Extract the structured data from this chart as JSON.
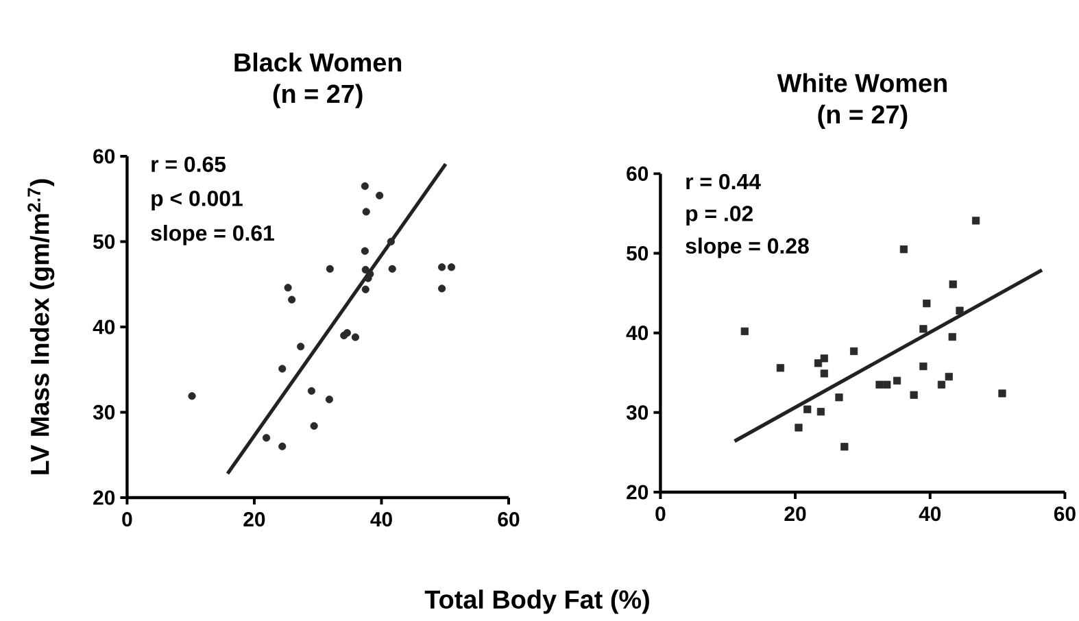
{
  "chart_data": [
    {
      "type": "scatter",
      "title": "Black Women",
      "subtitle": "(n = 27)",
      "ylabel": "LV Mass Index (gm/m$^{2.7}$)",
      "xlabel": "Total Body Fat (%)",
      "annotations": [
        "r = 0.65",
        "p < 0.001",
        "slope = 0.61"
      ],
      "xlim": [
        0,
        60
      ],
      "xticks": [
        0,
        20,
        40,
        60
      ],
      "ylim": [
        20,
        60
      ],
      "yticks": [
        20,
        30,
        40,
        50,
        60
      ],
      "grid": false,
      "series": [
        {
          "marker": "circle",
          "color": "#2a2a2a",
          "x": [
            10.2,
            21.9,
            24.4,
            24.4,
            25.3,
            25.9,
            27.3,
            29.0,
            29.4,
            31.8,
            31.9,
            34.1,
            34.6,
            35.9,
            37.4,
            37.6,
            37.4,
            37.5,
            37.9,
            37.5,
            38.2,
            39.7,
            41.5,
            41.7,
            49.5,
            49.5,
            51.0
          ],
          "values": [
            31.9,
            27.0,
            26.0,
            35.1,
            44.6,
            43.2,
            37.7,
            32.5,
            28.4,
            31.5,
            46.8,
            39.0,
            39.3,
            38.8,
            56.5,
            53.5,
            48.9,
            46.7,
            45.7,
            44.4,
            46.2,
            55.4,
            50.0,
            46.8,
            44.5,
            47.0,
            47.0
          ]
        },
        {
          "type": "line",
          "marker": "none",
          "color": "#222222",
          "x": [
            15.8,
            50.1
          ],
          "values": [
            22.8,
            59.1
          ]
        }
      ]
    },
    {
      "type": "scatter",
      "title": "White Women",
      "subtitle": "(n = 27)",
      "annotations": [
        "r = 0.44",
        "p = .02",
        "slope = 0.28"
      ],
      "xlim": [
        0,
        60
      ],
      "xticks": [
        0,
        20,
        40,
        60
      ],
      "ylim": [
        20,
        60
      ],
      "yticks": [
        20,
        30,
        40,
        50,
        60
      ],
      "grid": false,
      "series": [
        {
          "marker": "square",
          "color": "#2a2a2a",
          "x": [
            12.5,
            17.8,
            20.5,
            21.8,
            23.4,
            24.3,
            24.3,
            23.8,
            26.5,
            27.3,
            28.7,
            32.5,
            33.6,
            35.1,
            36.1,
            37.6,
            39.0,
            39.5,
            39.0,
            41.7,
            42.8,
            43.3,
            43.4,
            44.4,
            46.8,
            50.7
          ],
          "values": [
            40.2,
            35.6,
            28.1,
            30.4,
            36.2,
            36.8,
            34.9,
            30.1,
            31.9,
            25.7,
            37.7,
            33.5,
            33.5,
            34.0,
            50.5,
            32.2,
            40.5,
            43.7,
            35.8,
            33.5,
            34.5,
            39.5,
            46.1,
            42.8,
            54.1,
            32.4
          ]
        },
        {
          "type": "line",
          "marker": "none",
          "color": "#222222",
          "x": [
            11.0,
            56.6
          ],
          "values": [
            26.4,
            47.9
          ]
        }
      ]
    }
  ]
}
